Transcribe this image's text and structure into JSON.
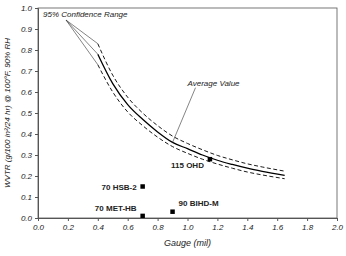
{
  "chart_data": {
    "type": "line",
    "xlabel": "Gauge (mil)",
    "ylabel": "WVTR (g/100 in²/24 hr) @ 100°F, 90% RH",
    "annotations": [
      {
        "text": "95% Confidence Range"
      },
      {
        "text": "Average Value"
      }
    ],
    "xlim": [
      0,
      2
    ],
    "ylim": [
      0,
      1
    ],
    "xticks": [
      {
        "value": 0,
        "label": "0.0"
      },
      0.2,
      0.4,
      0.6,
      0.8,
      {
        "value": 1,
        "label": "1.0"
      },
      1.2,
      1.4,
      1.6,
      1.8,
      {
        "value": 2,
        "label": "2.0"
      }
    ],
    "yticks": [
      {
        "value": 0,
        "label": "0.0"
      },
      0.1,
      0.2,
      0.3,
      0.4,
      0.5,
      0.6,
      0.7,
      0.8,
      0.9,
      {
        "value": 1,
        "label": "1.0"
      }
    ],
    "grid": false,
    "series": [
      {
        "type": "line",
        "line_style": "solid",
        "color": "#000000",
        "x": [
          0.4,
          0.5,
          0.6,
          0.7,
          0.8,
          0.9,
          1.0,
          1.1,
          1.2,
          1.3,
          1.4,
          1.5,
          1.65
        ],
        "values": [
          0.78,
          0.64,
          0.54,
          0.47,
          0.41,
          0.36,
          0.33,
          0.3,
          0.275,
          0.255,
          0.237,
          0.222,
          0.203
        ]
      },
      {
        "type": "line",
        "line_style": "dashed",
        "color": "#000000",
        "x": [
          0.4,
          0.5,
          0.6,
          0.7,
          0.8,
          0.9,
          1.0,
          1.1,
          1.2,
          1.3,
          1.4,
          1.5,
          1.65
        ],
        "values": [
          0.83,
          0.68,
          0.575,
          0.5,
          0.44,
          0.39,
          0.355,
          0.325,
          0.298,
          0.277,
          0.258,
          0.243,
          0.223
        ]
      },
      {
        "type": "line",
        "line_style": "dashed",
        "color": "#000000",
        "x": [
          0.4,
          0.5,
          0.6,
          0.7,
          0.8,
          0.9,
          1.0,
          1.1,
          1.2,
          1.3,
          1.4,
          1.5,
          1.65
        ],
        "values": [
          0.73,
          0.6,
          0.505,
          0.44,
          0.385,
          0.34,
          0.308,
          0.28,
          0.257,
          0.237,
          0.219,
          0.205,
          0.187
        ]
      },
      {
        "type": "scatter",
        "marker": "square",
        "color": "#000000",
        "x": [
          0.7,
          0.7,
          0.9,
          1.15
        ],
        "values": [
          0.15,
          0.01,
          0.03,
          0.28
        ],
        "labels": [
          "70 HSB-2",
          "70 MET-HB",
          "90 BIHD-M",
          "115 OHD"
        ]
      }
    ]
  }
}
